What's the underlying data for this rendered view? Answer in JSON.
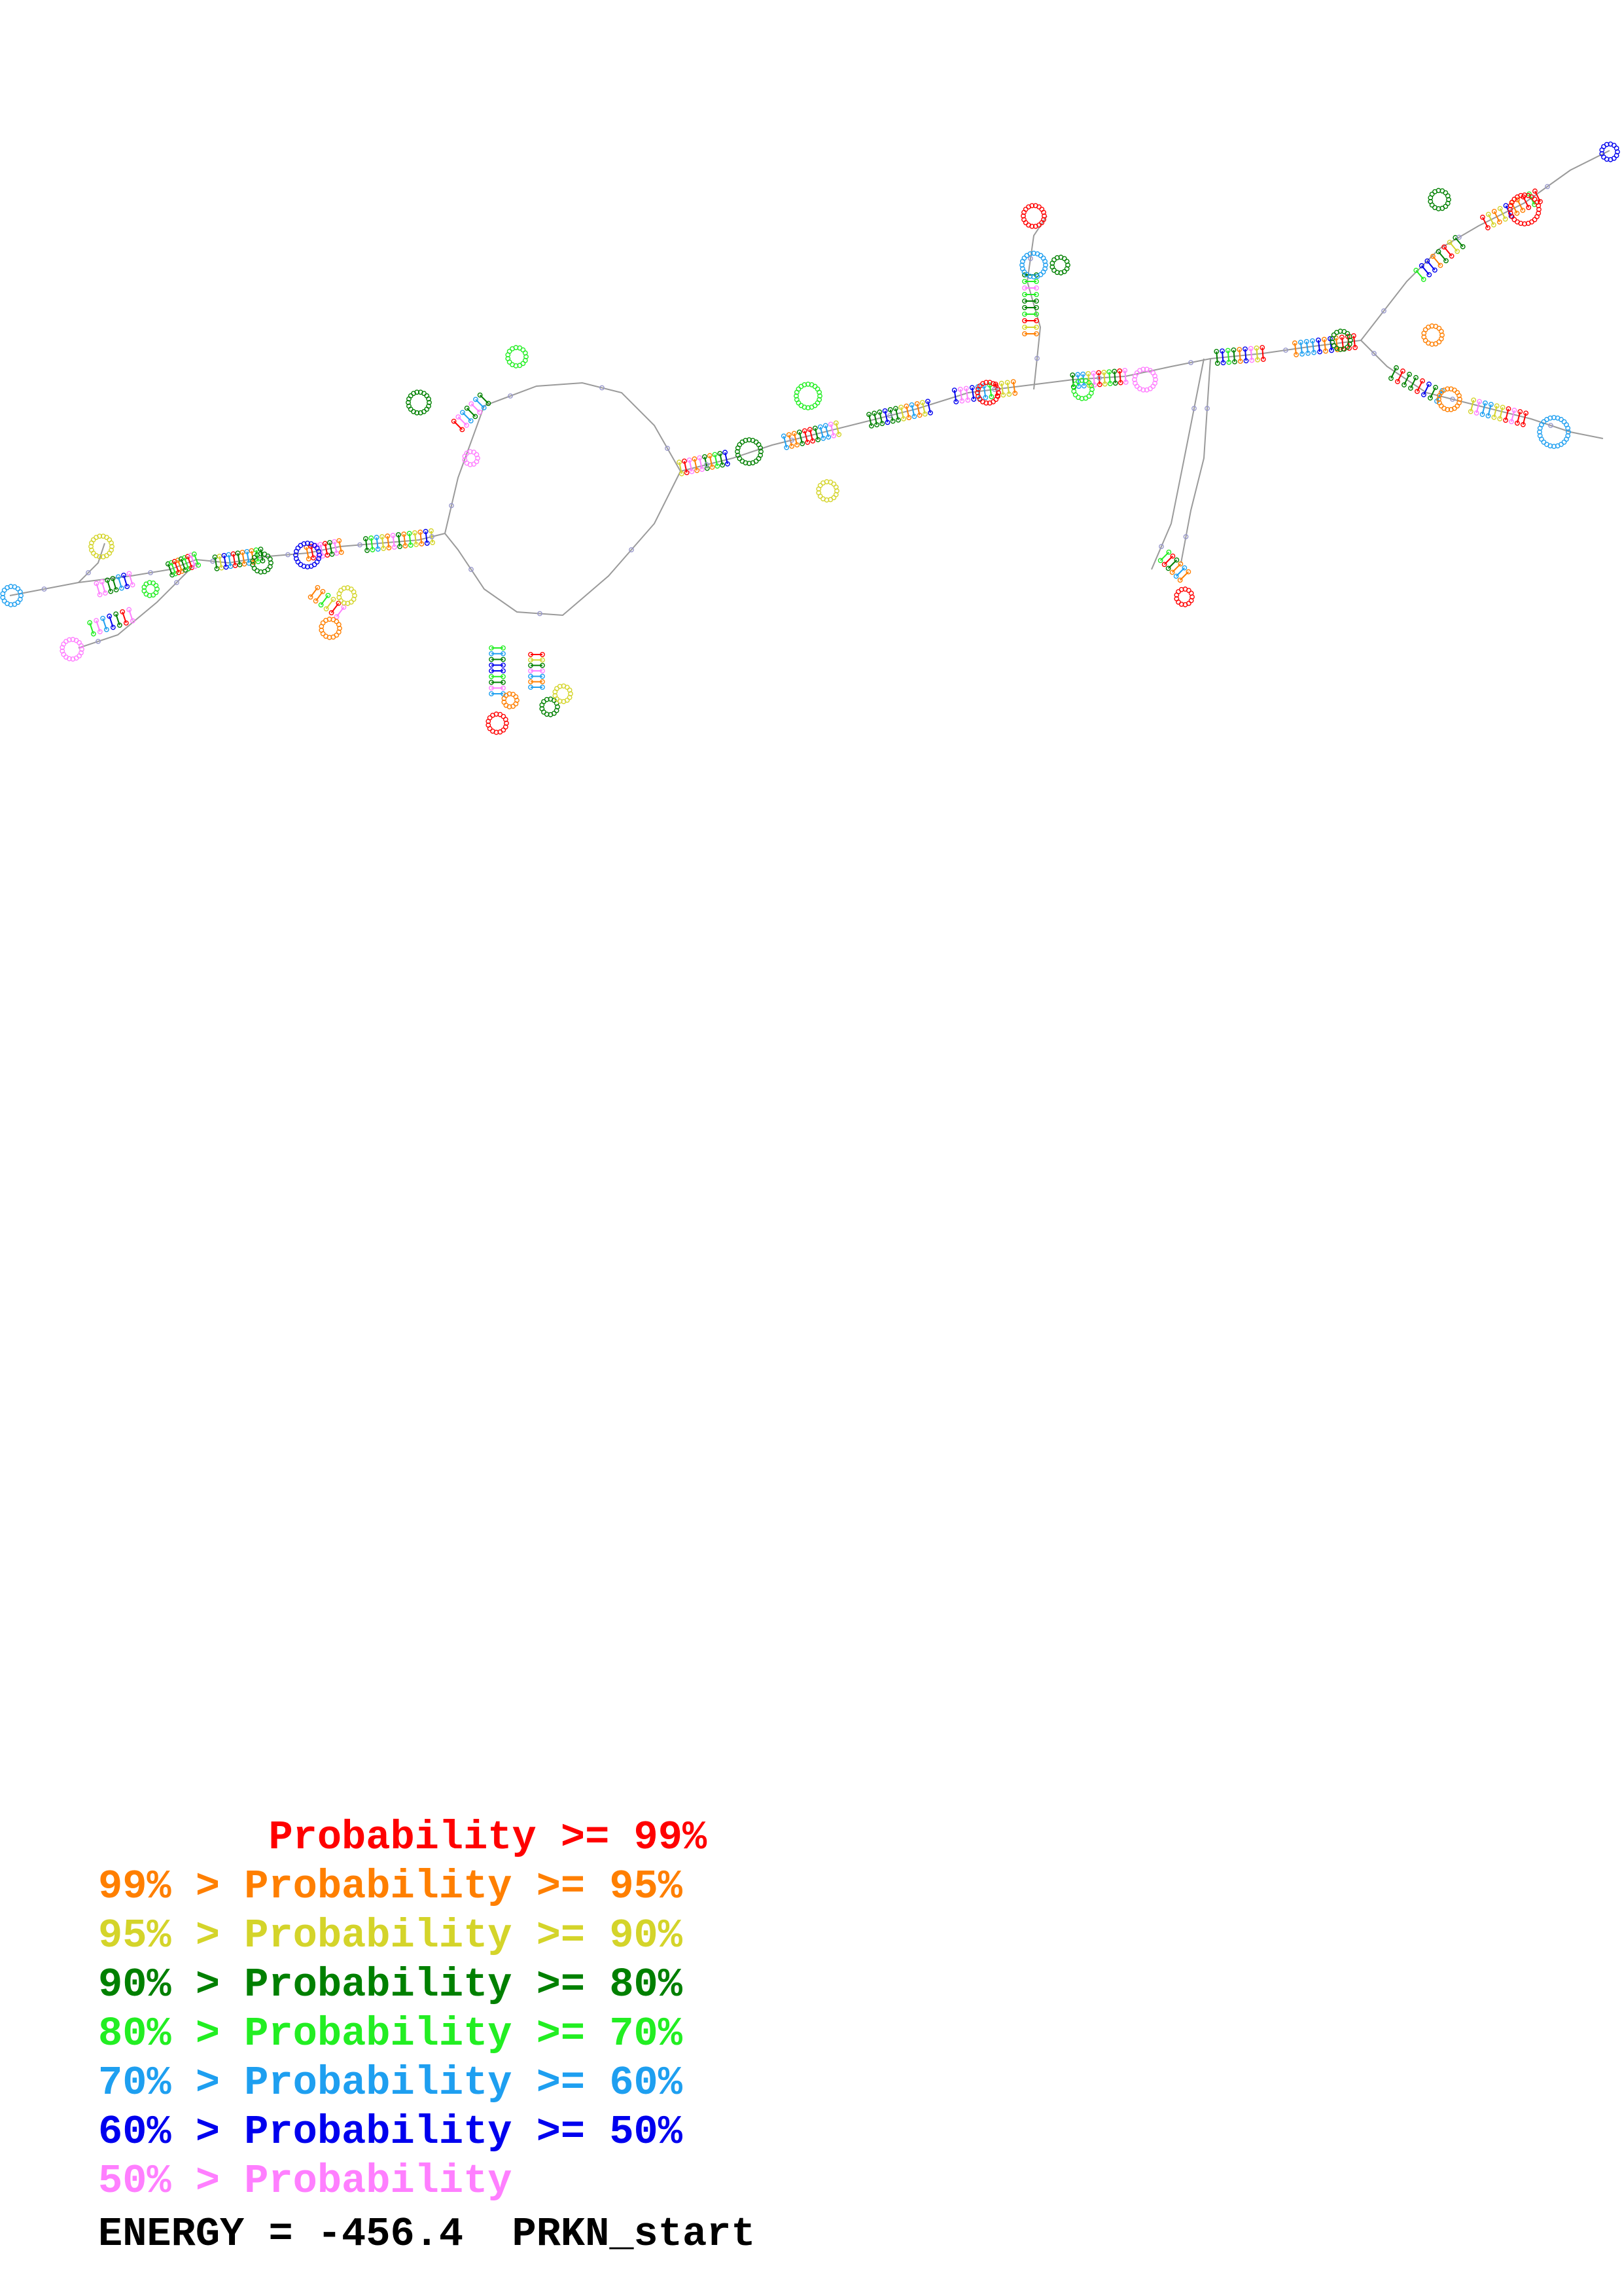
{
  "legend": [
    {
      "text": "       Probability >= 99%",
      "color": "#ff0000"
    },
    {
      "text": "99% > Probability >= 95%",
      "color": "#ff7f00"
    },
    {
      "text": "95% > Probability >= 90%",
      "color": "#d4d42a"
    },
    {
      "text": "90% > Probability >= 80%",
      "color": "#008000"
    },
    {
      "text": "80% > Probability >= 70%",
      "color": "#22ee22"
    },
    {
      "text": "70% > Probability >= 60%",
      "color": "#1e9ff0"
    },
    {
      "text": "60% > Probability >= 50%",
      "color": "#0000ee"
    },
    {
      "text": "50% > Probability",
      "color": "#ff7fff"
    }
  ],
  "energy_label": "ENERGY = -456.4",
  "sequence_name": "PRKN_start"
}
